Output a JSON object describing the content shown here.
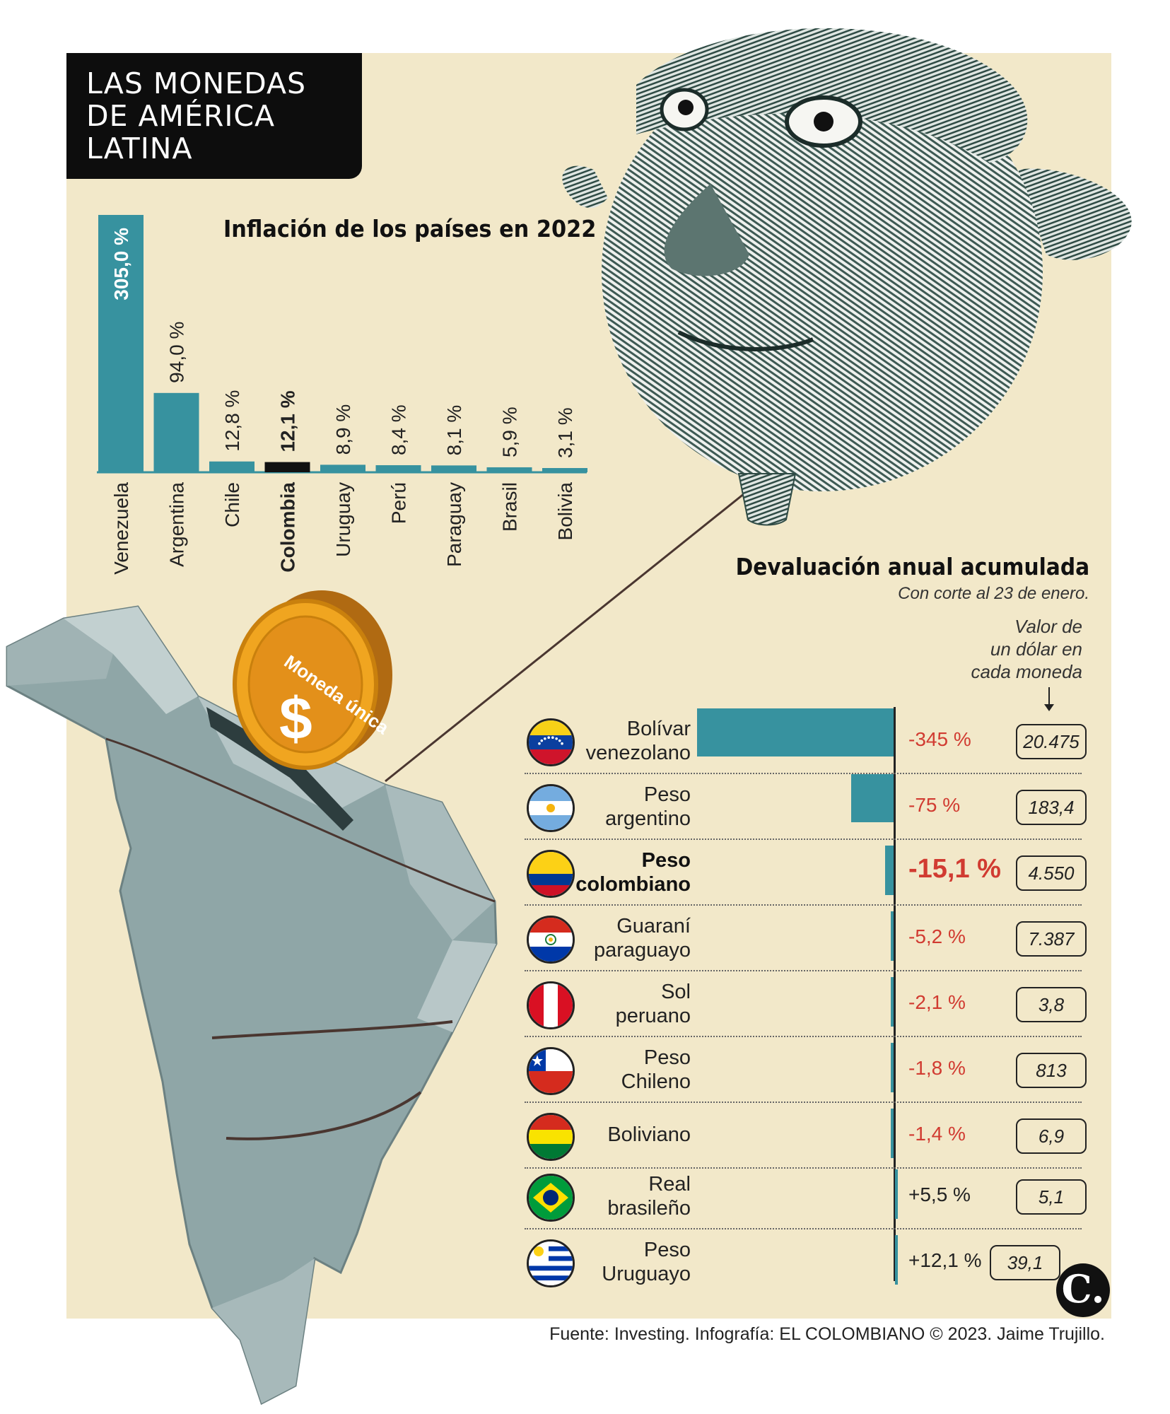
{
  "title": "LAS MONEDAS\nDE AMÉRICA\nLATINA",
  "coin_text": "Moneda única",
  "coin_symbol": "$",
  "inflation_title": "Inflación de los países en 2022",
  "devaluation": {
    "title": "Devaluación anual acumulada",
    "subtitle": "Con corte al 23 de enero.",
    "value_note": "Valor de\nun dólar en\ncada moneda"
  },
  "source": "Fuente: Investing. Infografía: EL COLOMBIANO © 2023. Jaime Trujillo.",
  "logo": "C.",
  "colors": {
    "bar": "#37929f",
    "highlight": "#111111",
    "negative": "#d13b31",
    "background": "#f2e8c9"
  },
  "chart_data": [
    {
      "type": "bar",
      "title": "Inflación de los países en 2022",
      "categories": [
        "Venezuela",
        "Argentina",
        "Chile",
        "Colombia",
        "Uruguay",
        "Perú",
        "Paraguay",
        "Brasil",
        "Bolivia"
      ],
      "values": [
        305.0,
        94.0,
        12.8,
        12.1,
        8.9,
        8.4,
        8.1,
        5.9,
        3.1
      ],
      "labels": [
        "305,0 %",
        "94,0 %",
        "12,8 %",
        "12,1 %",
        "8,9 %",
        "8,4 %",
        "8,1 %",
        "5,9 %",
        "3,1 %"
      ],
      "highlight": "Colombia",
      "ylim": [
        0,
        305
      ]
    },
    {
      "type": "bar",
      "title": "Devaluación anual acumulada",
      "subtitle": "Con corte al 23 de enero.",
      "orientation": "horizontal",
      "categories": [
        "Bolívar venezolano",
        "Peso argentino",
        "Peso colombiano",
        "Guaraní paraguayo",
        "Sol peruano",
        "Peso Chileno",
        "Boliviano",
        "Real brasileño",
        "Peso Uruguayo"
      ],
      "values": [
        -345,
        -75,
        -15.1,
        -5.2,
        -2.1,
        -1.8,
        -1.4,
        5.5,
        12.1
      ],
      "highlight": "Peso colombiano",
      "rows": [
        {
          "name": "Bolívar\nvenezolano",
          "flag": "venezuela-flag",
          "value": -345,
          "label": "-345 %",
          "dollar": "20.475"
        },
        {
          "name": "Peso\nargentino",
          "flag": "argentina-flag",
          "value": -75,
          "label": "-75 %",
          "dollar": "183,4"
        },
        {
          "name": "Peso\ncolombiano",
          "flag": "colombia-flag",
          "value": -15.1,
          "label": "-15,1 %",
          "dollar": "4.550",
          "highlight": true
        },
        {
          "name": "Guaraní\nparaguayo",
          "flag": "paraguay-flag",
          "value": -5.2,
          "label": "-5,2 %",
          "dollar": "7.387"
        },
        {
          "name": "Sol\nperuano",
          "flag": "peru-flag",
          "value": -2.1,
          "label": "-2,1 %",
          "dollar": "3,8"
        },
        {
          "name": "Peso\nChileno",
          "flag": "chile-flag",
          "value": -1.8,
          "label": "-1,8 %",
          "dollar": "813"
        },
        {
          "name": "Boliviano",
          "flag": "bolivia-flag",
          "value": -1.4,
          "label": "-1,4 %",
          "dollar": "6,9"
        },
        {
          "name": "Real\nbrasileño",
          "flag": "brazil-flag",
          "value": 5.5,
          "label": "+5,5 %",
          "dollar": "5,1"
        },
        {
          "name": "Peso\nUruguayo",
          "flag": "uruguay-flag",
          "value": 12.1,
          "label": "+12,1 %",
          "dollar": "39,1"
        }
      ]
    }
  ]
}
